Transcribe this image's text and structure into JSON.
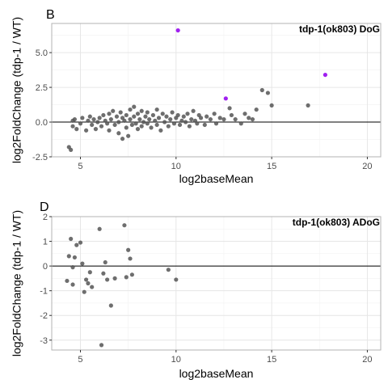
{
  "colors": {
    "point_default": "#555555",
    "point_highlight": "#a020f0",
    "grid_major": "#e6e6e6",
    "grid_minor": "#f2f2f2",
    "panel_border": "#b3b3b3",
    "hline": "#000000",
    "text": "#000000",
    "tick_text": "#4d4d4d"
  },
  "chart_data": [
    {
      "type": "scatter",
      "panel_label": "B",
      "annotation": "tdp-1(ok803) DoG",
      "xlabel": "log2baseMean",
      "ylabel": "log2FoldChange (tdp-1 / WT)",
      "xlim": [
        3.5,
        20.7
      ],
      "ylim": [
        -2.5,
        7.1
      ],
      "x_ticks": [
        5,
        10,
        15,
        20
      ],
      "y_ticks": [
        -2.5,
        0.0,
        2.5,
        5.0
      ],
      "y_tick_labels": [
        "-2.5",
        "0.0",
        "2.5",
        "5.0"
      ],
      "hline": 0,
      "grid": true,
      "points": [
        [
          4.4,
          -1.8
        ],
        [
          4.5,
          -2.0
        ],
        [
          4.6,
          -0.3
        ],
        [
          4.6,
          0.1
        ],
        [
          4.7,
          0.2
        ],
        [
          4.8,
          -0.5
        ],
        [
          5.0,
          -0.1
        ],
        [
          5.1,
          0.3
        ],
        [
          5.3,
          -0.6
        ],
        [
          5.4,
          0.1
        ],
        [
          5.5,
          0.4
        ],
        [
          5.6,
          -0.2
        ],
        [
          5.7,
          0.2
        ],
        [
          5.8,
          -0.5
        ],
        [
          5.9,
          0.0
        ],
        [
          6.0,
          0.3
        ],
        [
          6.1,
          -0.3
        ],
        [
          6.2,
          0.5
        ],
        [
          6.3,
          0.1
        ],
        [
          6.4,
          -0.1
        ],
        [
          6.5,
          0.6
        ],
        [
          6.5,
          -0.6
        ],
        [
          6.6,
          0.2
        ],
        [
          6.7,
          0.8
        ],
        [
          6.8,
          -0.2
        ],
        [
          6.9,
          0.4
        ],
        [
          7.0,
          0.0
        ],
        [
          7.0,
          -0.8
        ],
        [
          7.1,
          0.7
        ],
        [
          7.2,
          0.3
        ],
        [
          7.2,
          -1.2
        ],
        [
          7.3,
          0.1
        ],
        [
          7.4,
          0.5
        ],
        [
          7.4,
          -0.4
        ],
        [
          7.5,
          -1.0
        ],
        [
          7.6,
          0.9
        ],
        [
          7.6,
          0.2
        ],
        [
          7.7,
          -0.2
        ],
        [
          7.8,
          1.1
        ],
        [
          7.8,
          0.4
        ],
        [
          7.9,
          -0.1
        ],
        [
          8.0,
          0.6
        ],
        [
          8.0,
          -0.5
        ],
        [
          8.1,
          0.2
        ],
        [
          8.2,
          0.8
        ],
        [
          8.2,
          -0.3
        ],
        [
          8.3,
          0.0
        ],
        [
          8.4,
          0.4
        ],
        [
          8.5,
          -0.1
        ],
        [
          8.5,
          0.7
        ],
        [
          8.6,
          0.2
        ],
        [
          8.7,
          -0.4
        ],
        [
          8.8,
          0.5
        ],
        [
          8.9,
          0.1
        ],
        [
          9.0,
          -0.2
        ],
        [
          9.0,
          0.9
        ],
        [
          9.1,
          0.3
        ],
        [
          9.2,
          -0.6
        ],
        [
          9.3,
          0.6
        ],
        [
          9.4,
          0.0
        ],
        [
          9.5,
          0.4
        ],
        [
          9.6,
          -0.3
        ],
        [
          9.7,
          0.2
        ],
        [
          9.8,
          0.7
        ],
        [
          9.9,
          -0.1
        ],
        [
          10.0,
          0.3
        ],
        [
          10.1,
          0.5
        ],
        [
          10.2,
          -0.2
        ],
        [
          10.3,
          0.1
        ],
        [
          10.4,
          0.4
        ],
        [
          10.5,
          0.0
        ],
        [
          10.6,
          0.6
        ],
        [
          10.7,
          -0.3
        ],
        [
          10.8,
          0.2
        ],
        [
          10.9,
          0.8
        ],
        [
          11.0,
          0.1
        ],
        [
          11.1,
          -0.1
        ],
        [
          11.2,
          0.5
        ],
        [
          11.3,
          0.3
        ],
        [
          11.5,
          -0.2
        ],
        [
          11.6,
          0.4
        ],
        [
          11.8,
          0.2
        ],
        [
          12.0,
          0.6
        ],
        [
          12.1,
          -0.1
        ],
        [
          12.3,
          0.3
        ],
        [
          12.5,
          0.2
        ],
        [
          12.8,
          1.0
        ],
        [
          12.9,
          0.5
        ],
        [
          13.1,
          0.2
        ],
        [
          13.4,
          -0.1
        ],
        [
          13.6,
          0.6
        ],
        [
          13.8,
          0.3
        ],
        [
          14.0,
          0.2
        ],
        [
          14.2,
          0.9
        ],
        [
          14.5,
          2.3
        ],
        [
          14.8,
          2.1
        ],
        [
          15.0,
          1.2
        ],
        [
          16.9,
          1.2
        ]
      ],
      "highlight_points": [
        [
          10.1,
          6.6
        ],
        [
          12.6,
          1.7
        ],
        [
          17.8,
          3.4
        ]
      ]
    },
    {
      "type": "scatter",
      "panel_label": "D",
      "annotation": "tdp-1(ok803) ADoG",
      "xlabel": "log2baseMean",
      "ylabel": "log2FoldChange (tdp-1 / WT)",
      "xlim": [
        3.5,
        20.7
      ],
      "ylim": [
        -3.4,
        2.0
      ],
      "x_ticks": [
        5,
        10,
        15,
        20
      ],
      "y_ticks": [
        -3,
        -2,
        -1,
        0,
        1,
        2
      ],
      "y_tick_labels": [
        "-3",
        "-2",
        "-1",
        "0",
        "1",
        "2"
      ],
      "hline": 0,
      "grid": true,
      "points": [
        [
          4.3,
          -0.6
        ],
        [
          4.4,
          0.4
        ],
        [
          4.5,
          1.1
        ],
        [
          4.6,
          -0.75
        ],
        [
          4.6,
          -0.05
        ],
        [
          4.7,
          0.35
        ],
        [
          4.8,
          0.85
        ],
        [
          5.0,
          0.95
        ],
        [
          5.1,
          0.1
        ],
        [
          5.2,
          -1.05
        ],
        [
          5.3,
          -0.55
        ],
        [
          5.4,
          -0.7
        ],
        [
          5.5,
          -0.25
        ],
        [
          5.6,
          -0.85
        ],
        [
          6.0,
          1.5
        ],
        [
          6.1,
          -3.2
        ],
        [
          6.2,
          -0.3
        ],
        [
          6.3,
          0.15
        ],
        [
          6.4,
          -0.55
        ],
        [
          6.6,
          -1.6
        ],
        [
          6.8,
          -0.5
        ],
        [
          7.3,
          1.65
        ],
        [
          7.4,
          -0.45
        ],
        [
          7.5,
          0.65
        ],
        [
          7.6,
          0.3
        ],
        [
          7.7,
          -0.35
        ],
        [
          9.6,
          -0.15
        ],
        [
          10.0,
          -0.55
        ]
      ],
      "highlight_points": []
    }
  ]
}
